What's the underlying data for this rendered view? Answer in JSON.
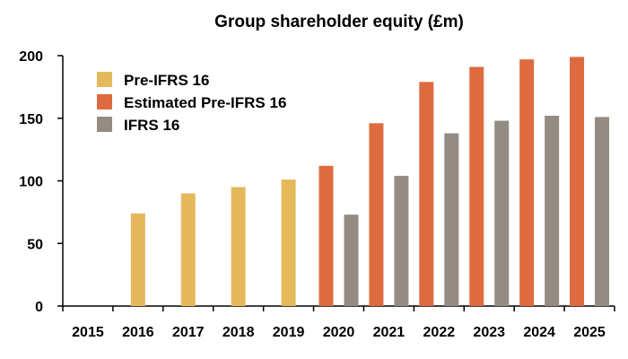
{
  "chart_data": {
    "type": "bar",
    "title": "Group shareholder equity (£m)",
    "xlabel": "",
    "ylabel": "",
    "ylim": [
      0,
      200
    ],
    "yticks": [
      0,
      50,
      100,
      150,
      200
    ],
    "grid": false,
    "legend_position": "top-left",
    "categories": [
      "2015",
      "2016",
      "2017",
      "2018",
      "2019",
      "2020",
      "2021",
      "2022",
      "2023",
      "2024",
      "2025"
    ],
    "series": [
      {
        "name": "Pre-IFRS 16",
        "color": "#E6B85C",
        "values": [
          null,
          74,
          90,
          95,
          101,
          null,
          null,
          null,
          null,
          null,
          null
        ]
      },
      {
        "name": "Estimated Pre-IFRS 16",
        "color": "#DE6B3F",
        "values": [
          null,
          null,
          null,
          null,
          null,
          112,
          146,
          179,
          191,
          197,
          199
        ]
      },
      {
        "name": "IFRS 16",
        "color": "#948B82",
        "values": [
          null,
          null,
          null,
          null,
          null,
          73,
          104,
          138,
          148,
          152,
          151
        ]
      }
    ]
  }
}
